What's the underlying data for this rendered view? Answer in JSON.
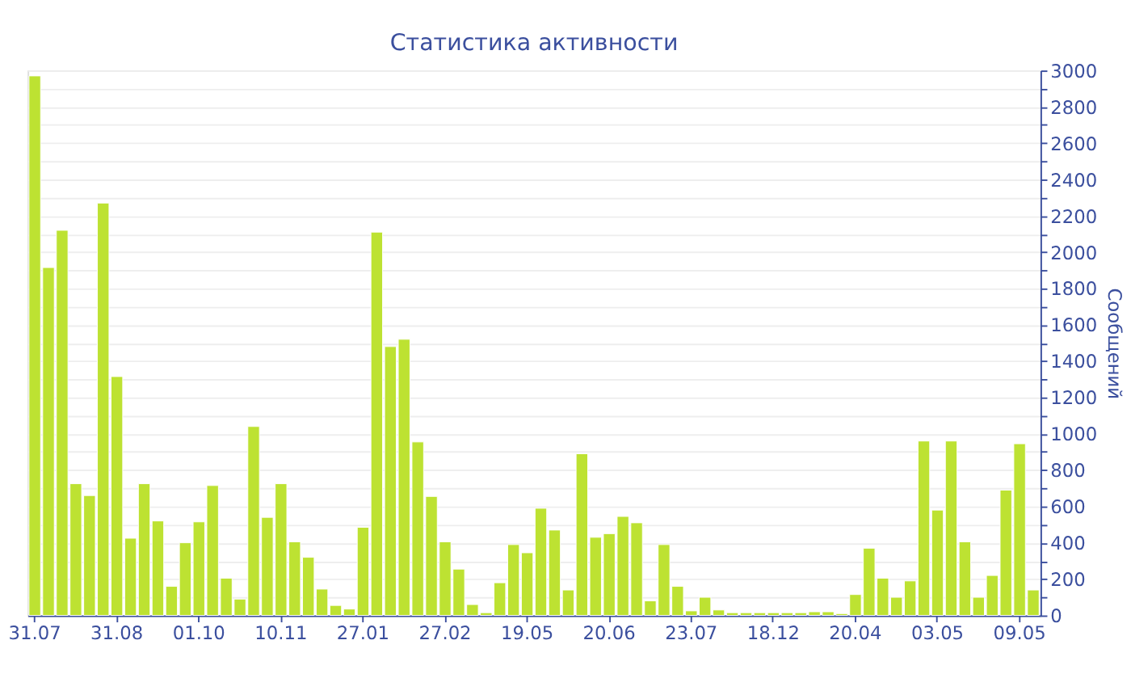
{
  "chart_data": {
    "type": "bar",
    "title": "Статистика активности",
    "ylabel": "Сообщений",
    "categories": [
      "31.07",
      null,
      null,
      null,
      null,
      null,
      "31.08",
      null,
      null,
      null,
      null,
      null,
      "01.10",
      null,
      null,
      null,
      null,
      null,
      "10.11",
      null,
      null,
      null,
      null,
      null,
      "27.01",
      null,
      null,
      null,
      null,
      null,
      "27.02",
      null,
      null,
      null,
      null,
      null,
      "19.05",
      null,
      null,
      null,
      null,
      null,
      "20.06",
      null,
      null,
      null,
      null,
      null,
      "23.07",
      null,
      null,
      null,
      null,
      null,
      "18.12",
      null,
      null,
      null,
      null,
      null,
      "20.04",
      null,
      null,
      null,
      null,
      null,
      "03.05",
      null,
      null,
      null,
      null,
      null,
      "09.05",
      null
    ],
    "values": [
      2970,
      1915,
      2120,
      725,
      660,
      2270,
      1315,
      425,
      725,
      520,
      160,
      400,
      515,
      715,
      205,
      90,
      1040,
      540,
      725,
      405,
      320,
      145,
      55,
      35,
      485,
      2110,
      1480,
      1520,
      955,
      655,
      405,
      255,
      60,
      15,
      180,
      390,
      345,
      590,
      470,
      140,
      890,
      430,
      450,
      545,
      510,
      80,
      390,
      160,
      25,
      100,
      30,
      15,
      15,
      15,
      15,
      15,
      15,
      20,
      20,
      10,
      115,
      370,
      205,
      100,
      190,
      960,
      580,
      960,
      405,
      100,
      220,
      690,
      945,
      140
    ],
    "color": "#bde232",
    "ylim": [
      0,
      3000
    ],
    "yticks": [
      0,
      {
        "value": 100,
        "label": null
      },
      200,
      {
        "value": 300,
        "label": null
      },
      400,
      {
        "value": 500,
        "label": null
      },
      600,
      {
        "value": 700,
        "label": null
      },
      800,
      {
        "value": 900,
        "label": null
      },
      1000,
      {
        "value": 1100,
        "label": null
      },
      1200,
      {
        "value": 1300,
        "label": null
      },
      1400,
      {
        "value": 1500,
        "label": null
      },
      1600,
      {
        "value": 1700,
        "label": null
      },
      1800,
      {
        "value": 1900,
        "label": null
      },
      2000,
      {
        "value": 2100,
        "label": null
      },
      2200,
      {
        "value": 2300,
        "label": null
      },
      2400,
      {
        "value": 2500,
        "label": null
      },
      2600,
      {
        "value": 2700,
        "label": null
      },
      2800,
      {
        "value": 2900,
        "label": null
      },
      3000
    ],
    "grid": "y"
  }
}
